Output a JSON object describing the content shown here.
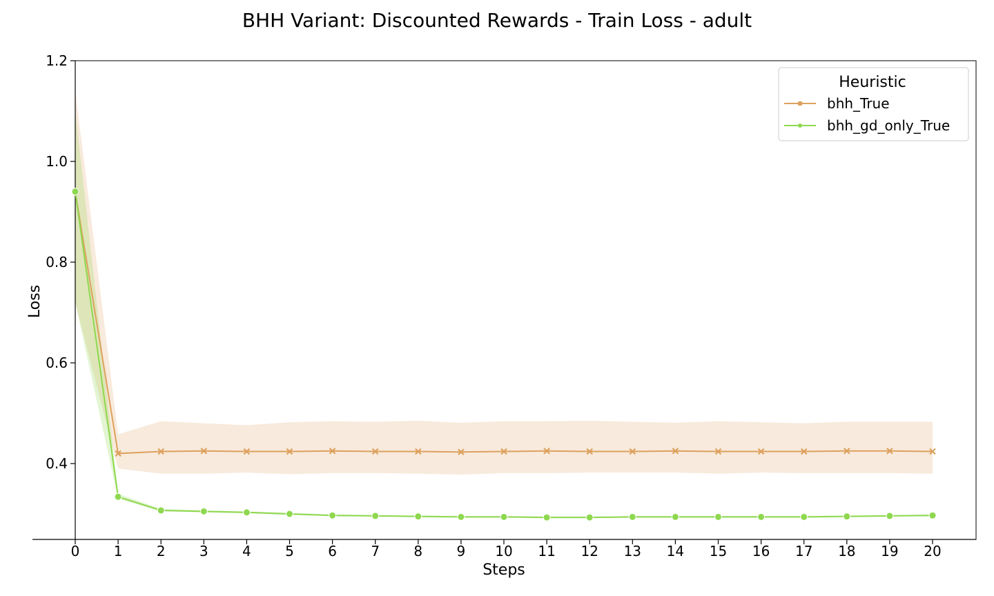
{
  "chart_data": {
    "type": "line",
    "title": "BHH Variant: Discounted Rewards - Train Loss - adult",
    "xlabel": "Steps",
    "ylabel": "Loss",
    "xlim": [
      0,
      20
    ],
    "ylim": [
      0.3,
      1.2
    ],
    "x": [
      0,
      1,
      2,
      3,
      4,
      5,
      6,
      7,
      8,
      9,
      10,
      11,
      12,
      13,
      14,
      15,
      16,
      17,
      18,
      19,
      20
    ],
    "xticks": [
      "0",
      "1",
      "2",
      "3",
      "4",
      "5",
      "6",
      "7",
      "8",
      "9",
      "10",
      "11",
      "12",
      "13",
      "14",
      "15",
      "16",
      "17",
      "18",
      "19",
      "20"
    ],
    "yticks": [
      "0.4",
      "0.6",
      "0.8",
      "1.0",
      "1.2"
    ],
    "ytick_values": [
      0.4,
      0.6,
      0.8,
      1.0,
      1.2
    ],
    "grid": false,
    "legend": {
      "title": "Heuristic",
      "placement": "top-right"
    },
    "series": [
      {
        "name": "bhh_True",
        "color": "#DDA15E",
        "marker": "x",
        "values": [
          0.94,
          0.42,
          0.424,
          0.425,
          0.424,
          0.424,
          0.425,
          0.424,
          0.424,
          0.423,
          0.424,
          0.425,
          0.424,
          0.424,
          0.425,
          0.424,
          0.424,
          0.424,
          0.425,
          0.425,
          0.424
        ],
        "ci_low": [
          0.72,
          0.39,
          0.38,
          0.38,
          0.382,
          0.379,
          0.381,
          0.381,
          0.38,
          0.378,
          0.381,
          0.381,
          0.382,
          0.382,
          0.382,
          0.38,
          0.382,
          0.381,
          0.381,
          0.381,
          0.38
        ],
        "ci_high": [
          1.14,
          0.458,
          0.484,
          0.48,
          0.476,
          0.482,
          0.484,
          0.483,
          0.485,
          0.481,
          0.484,
          0.484,
          0.485,
          0.483,
          0.481,
          0.484,
          0.482,
          0.48,
          0.483,
          0.483,
          0.483
        ]
      },
      {
        "name": "bhh_gd_only_True",
        "color": "#8ED84F",
        "marker": "o",
        "values": [
          0.94,
          0.334,
          0.307,
          0.305,
          0.303,
          0.3,
          0.297,
          0.296,
          0.295,
          0.294,
          0.294,
          0.293,
          0.293,
          0.294,
          0.294,
          0.294,
          0.294,
          0.294,
          0.295,
          0.296,
          0.297
        ],
        "ci_low": [
          0.72,
          0.33,
          0.305,
          0.303,
          0.301,
          0.298,
          0.296,
          0.295,
          0.294,
          0.293,
          0.293,
          0.292,
          0.292,
          0.293,
          0.293,
          0.293,
          0.293,
          0.293,
          0.294,
          0.295,
          0.296
        ],
        "ci_high": [
          1.1,
          0.34,
          0.31,
          0.307,
          0.305,
          0.302,
          0.299,
          0.298,
          0.297,
          0.296,
          0.296,
          0.295,
          0.295,
          0.296,
          0.296,
          0.296,
          0.296,
          0.296,
          0.297,
          0.298,
          0.299
        ]
      }
    ]
  }
}
